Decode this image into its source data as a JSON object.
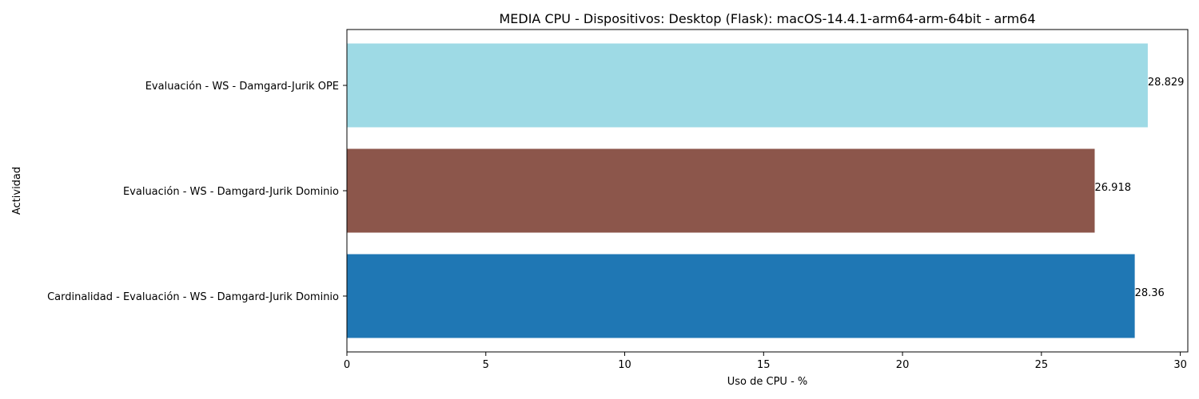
{
  "chart_data": {
    "type": "bar",
    "orientation": "horizontal",
    "title": "MEDIA CPU - Dispositivos: Desktop (Flask): macOS-14.4.1-arm64-arm-64bit - arm64",
    "xlabel": "Uso de CPU - %",
    "ylabel": "Actividad",
    "xlim": [
      0,
      30.27
    ],
    "xticks": [
      0,
      5,
      10,
      15,
      20,
      25,
      30
    ],
    "grid": false,
    "categories": [
      "Cardinalidad - Evaluación - WS - Damgard-Jurik Dominio",
      "Evaluación - WS - Damgard-Jurik Dominio",
      "Evaluación - WS - Damgard-Jurik OPE"
    ],
    "values": [
      28.36,
      26.918,
      28.829
    ],
    "value_labels": [
      "28.36",
      "26.918",
      "28.829"
    ],
    "colors": [
      "#1f77b4",
      "#8c564b",
      "#9edae5"
    ]
  }
}
